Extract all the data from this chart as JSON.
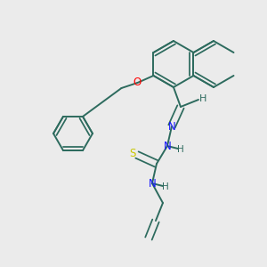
{
  "background_color": "#ebebeb",
  "bond_color": "#2d6b5e",
  "atom_colors": {
    "N": "#1414ff",
    "O": "#ff0000",
    "S": "#c8c800",
    "H": "#2d6b5e",
    "C": "#2d6b5e"
  },
  "figsize": [
    3.0,
    3.0
  ],
  "dpi": 100,
  "bond_lw": 1.4,
  "inner_sep": 0.07
}
